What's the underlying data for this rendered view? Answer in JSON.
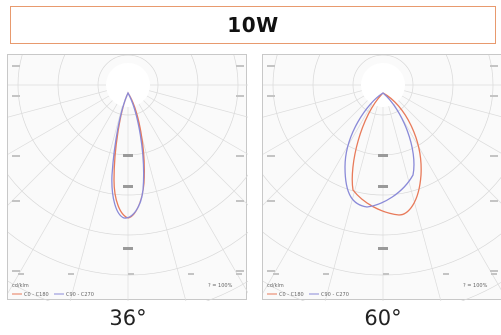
{
  "title": "10W",
  "diagrams": [
    {
      "caption": "36°",
      "curve_c0_color": "#e87a5a",
      "curve_c90_color": "#8a8ad8",
      "legend": {
        "unit": "cd/klm",
        "c0": "C0 - C180",
        "c90": "C90 - C270",
        "scale": "? = 100%"
      }
    },
    {
      "caption": "60°",
      "curve_c0_color": "#e87a5a",
      "curve_c90_color": "#8a8ad8",
      "legend": {
        "unit": "cd/klm",
        "c0": "C0 - C180",
        "c90": "C90 - C270",
        "scale": "? = 100%"
      }
    }
  ],
  "angle_labels": {
    "top": "180°",
    "upper": "150°",
    "mid": "120°",
    "lower": "90°",
    "bottom": "60°",
    "b1": "30°",
    "center": "0°"
  }
}
